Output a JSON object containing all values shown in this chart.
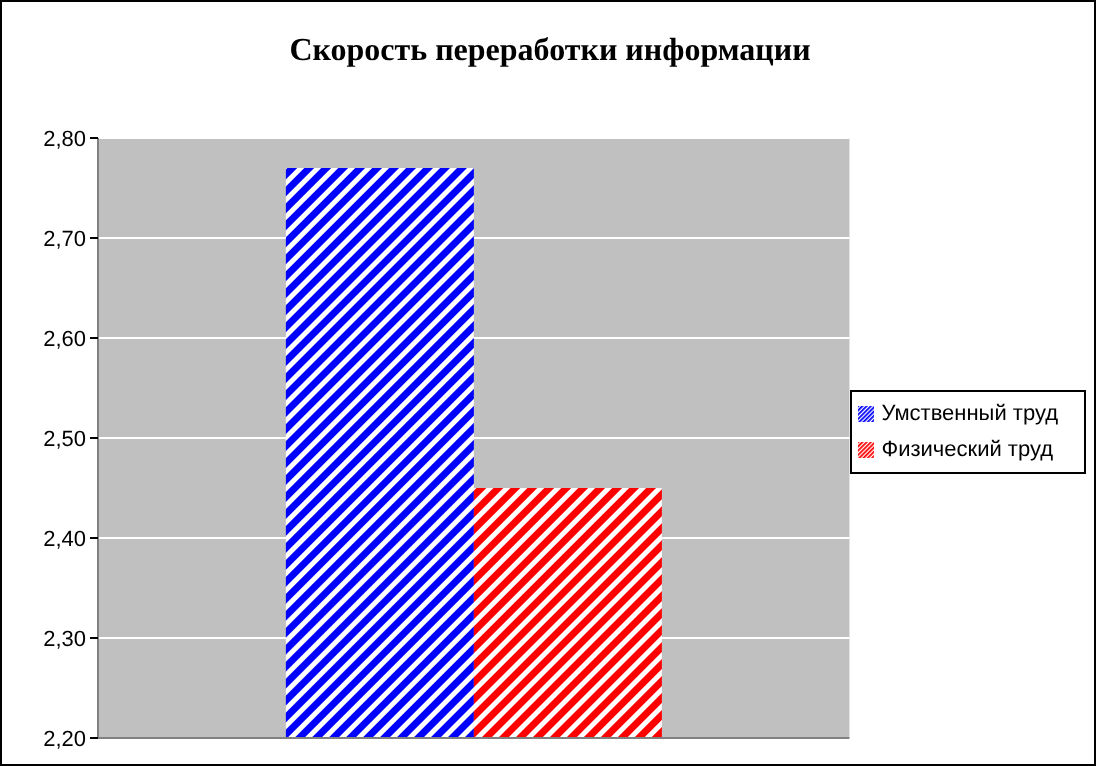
{
  "chart_data": {
    "type": "bar",
    "title": "Скорость переработки информации",
    "categories": [
      null
    ],
    "series": [
      {
        "name": "Умственный труд",
        "color": "#0000ff",
        "values": [
          2.77
        ]
      },
      {
        "name": "Физический труд",
        "color": "#ff0000",
        "values": [
          2.45
        ]
      }
    ],
    "ylim": [
      2.2,
      2.8
    ],
    "yticks": [
      {
        "value": 2.2,
        "label": "2,20"
      },
      {
        "value": 2.3,
        "label": "2,30"
      },
      {
        "value": 2.4,
        "label": "2,40"
      },
      {
        "value": 2.5,
        "label": "2,50"
      },
      {
        "value": 2.6,
        "label": "2,60"
      },
      {
        "value": 2.7,
        "label": "2,70"
      },
      {
        "value": 2.8,
        "label": "2,80"
      }
    ],
    "grid": "y",
    "legend": "right"
  }
}
